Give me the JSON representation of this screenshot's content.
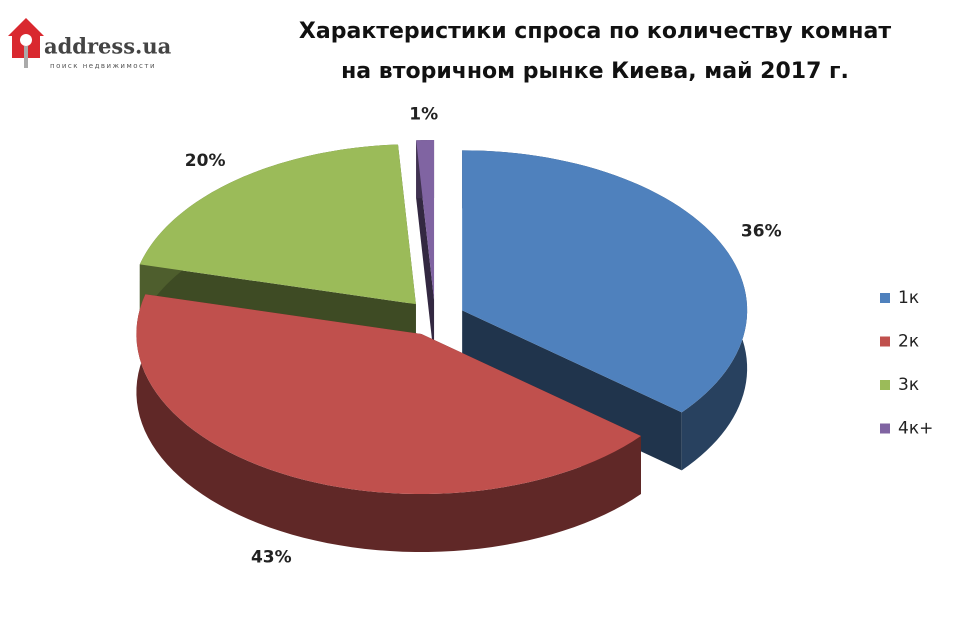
{
  "logo": {
    "name": "address.ua",
    "tagline": "поиск недвижимости"
  },
  "chart_data": {
    "type": "pie3d",
    "title": [
      "Характеристики спроса по количеству комнат",
      "на вторичном рынке Киева, май 2017 г."
    ],
    "categories": [
      "1к",
      "2к",
      "3к",
      "4к+"
    ],
    "values": [
      36,
      43,
      20,
      1
    ],
    "value_labels": [
      "36%",
      "43%",
      "20%",
      "1%"
    ],
    "colors": [
      "#4f81bd",
      "#c0504d",
      "#9bbb59",
      "#8064a2"
    ],
    "legend": "right"
  }
}
